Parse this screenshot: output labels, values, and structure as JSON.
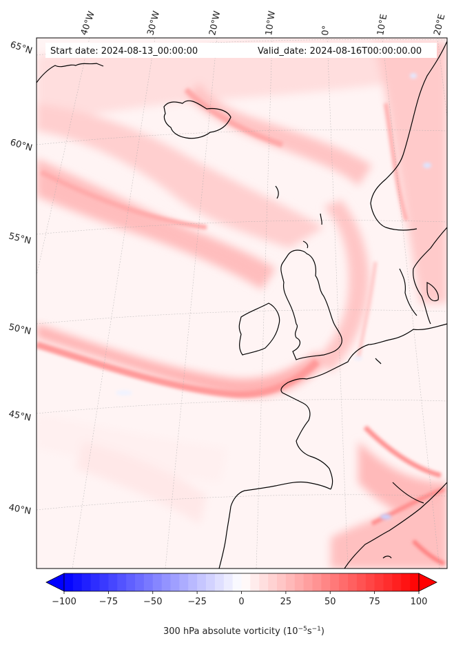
{
  "header": {
    "start_date": "Start date: 2024-08-13_00:00:00",
    "valid_date": "Valid_date: 2024-08-16T00:00:00.00"
  },
  "longitude_labels": [
    "40°W",
    "30°W",
    "20°W",
    "10°W",
    "0°",
    "10°E",
    "20°E"
  ],
  "latitude_labels": [
    "65°N",
    "60°N",
    "55°N",
    "50°N",
    "45°N",
    "40°N"
  ],
  "colorbar": {
    "min": -100,
    "max": 100,
    "tick_labels": [
      "−100",
      "−75",
      "−50",
      "−25",
      "0",
      "25",
      "50",
      "75",
      "100"
    ],
    "low_color": "#0000ff",
    "mid_color": "#ffffff",
    "high_color": "#ff0000",
    "label_prefix": "300 hPa absolute vorticity (10",
    "label_exp1": "−5",
    "label_mid": "s",
    "label_exp2": "−1",
    "label_suffix": ")"
  }
}
